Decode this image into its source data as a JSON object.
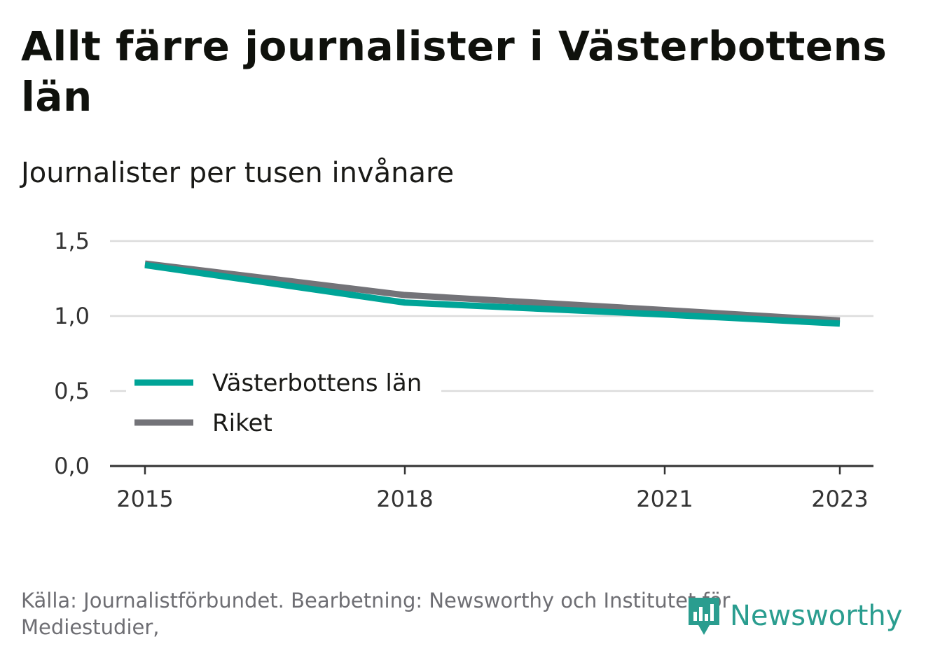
{
  "header": {
    "title": "Allt färre journalister i Västerbottens län",
    "subtitle": "Journalister per tusen invånare"
  },
  "footer": {
    "source": "Källa: Journalistförbundet. Bearbetning: Newsworthy och Institutet för Mediestudier,"
  },
  "brand": {
    "name": "Newsworthy",
    "icon": "newsworthy-bar-chart-icon",
    "color": "#2a9d8f"
  },
  "chart_data": {
    "type": "line",
    "x": [
      2015,
      2018,
      2021,
      2023
    ],
    "xticks": [
      "2015",
      "2018",
      "2021",
      "2023"
    ],
    "yticks": [
      "0,0",
      "0,5",
      "1,0",
      "1,5"
    ],
    "ylim": [
      0,
      1.5
    ],
    "grid": true,
    "legend_position": "bottom-left",
    "series": [
      {
        "name": "Riket",
        "color": "#737378",
        "values": [
          1.35,
          1.14,
          1.04,
          0.97
        ]
      },
      {
        "name": "Västerbottens län",
        "color": "#00a497",
        "values": [
          1.34,
          1.09,
          1.01,
          0.95
        ]
      }
    ],
    "legend": [
      "Västerbottens län",
      "Riket"
    ]
  }
}
